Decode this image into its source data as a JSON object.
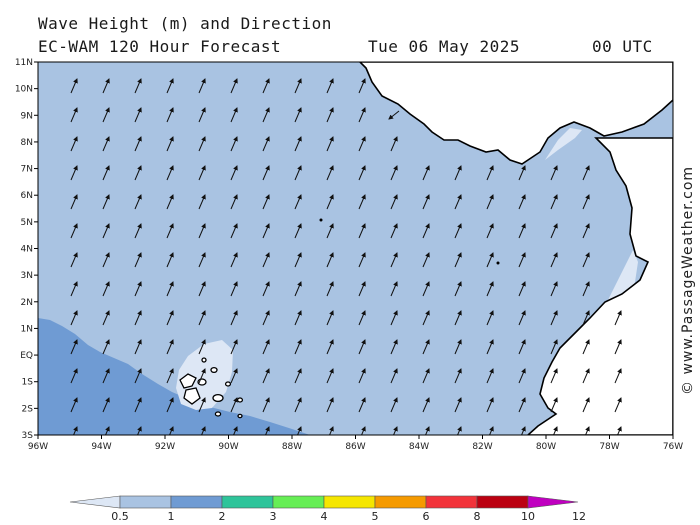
{
  "header": {
    "title": "Wave Height (m) and Direction",
    "model": "EC-WAM 120 Hour Forecast",
    "date": "Tue 06 May 2025",
    "time": "00 UTC"
  },
  "watermark": "© www.PassageWeather.com",
  "axes": {
    "lon_labels": [
      "96W",
      "94W",
      "92W",
      "90W",
      "88W",
      "86W",
      "84W",
      "82W",
      "80W",
      "78W",
      "76W"
    ],
    "lat_labels": [
      "11N",
      "10N",
      "9N",
      "8N",
      "7N",
      "6N",
      "5N",
      "4N",
      "3N",
      "2N",
      "1N",
      "EQ",
      "1S",
      "2S",
      "3S"
    ]
  },
  "legend": {
    "labels": [
      "0.5",
      "1",
      "2",
      "3",
      "4",
      "5",
      "6",
      "8",
      "10",
      "12"
    ],
    "colors": [
      "#dde7f5",
      "#a9c3e2",
      "#6f9bd3",
      "#2ec49a",
      "#66ee55",
      "#f5e600",
      "#f59a00",
      "#f2333a",
      "#bb0011",
      "#c000c0"
    ]
  },
  "colors": {
    "band_1_2": "#a9c3e2",
    "band_2_3": "#6f9bd3",
    "band_05_1": "#dde7f5",
    "land": "#ffffff"
  }
}
